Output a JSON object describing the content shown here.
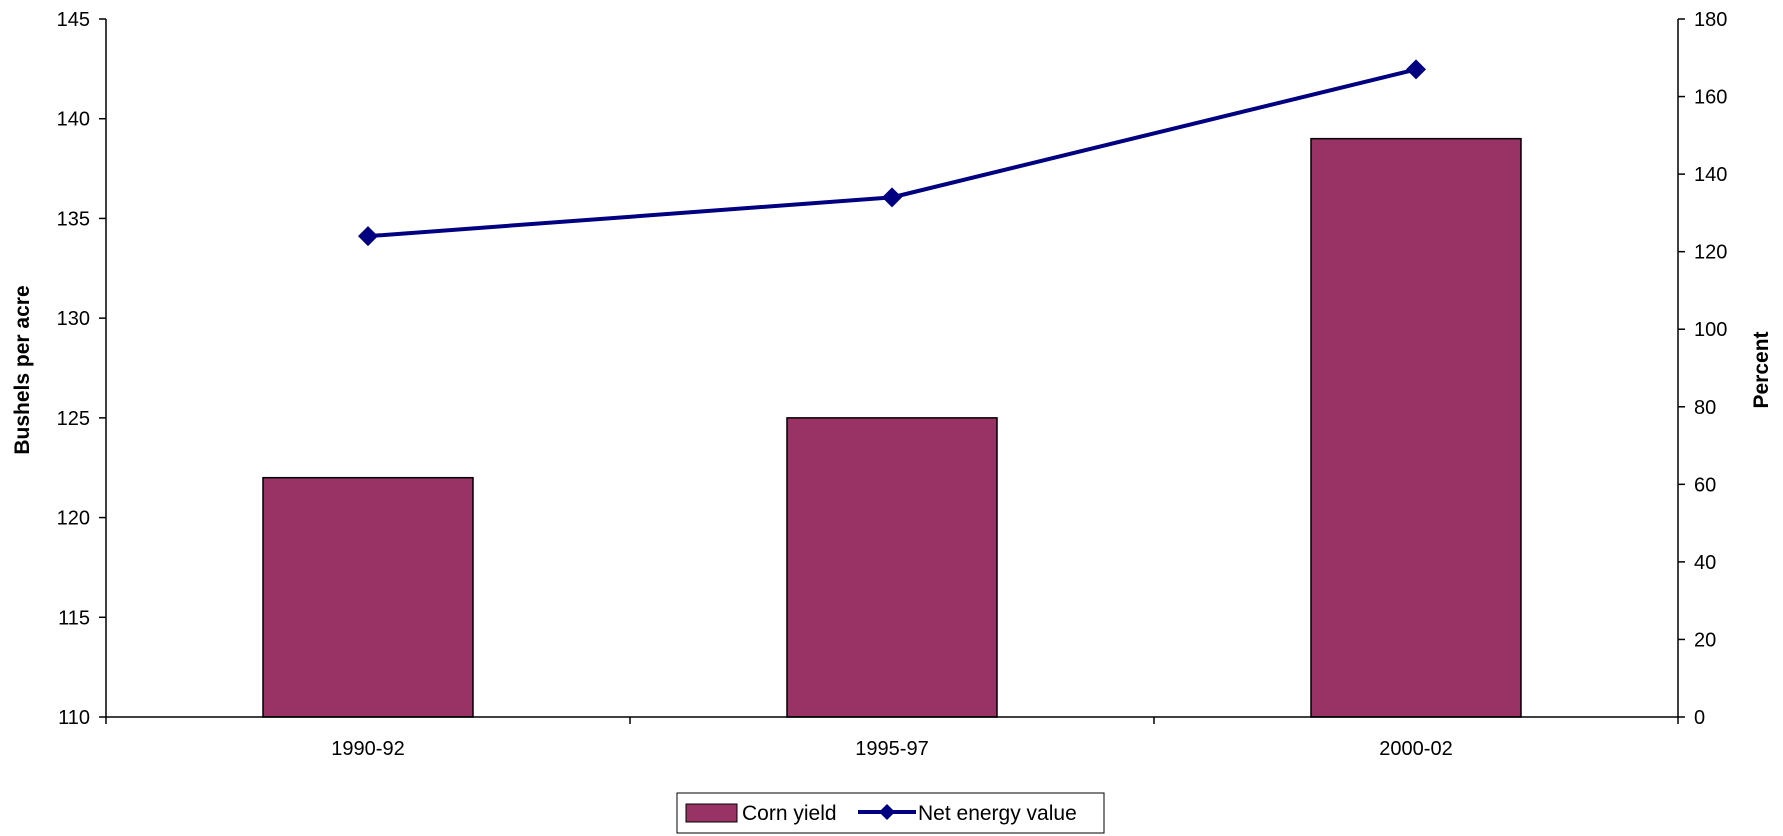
{
  "chart_data": {
    "type": "bar",
    "categories": [
      "1990-92",
      "1995-97",
      "2000-02"
    ],
    "series": [
      {
        "name": "Corn yield",
        "type": "bar",
        "axis": "left",
        "values": [
          122,
          125,
          139
        ],
        "color": "#993366"
      },
      {
        "name": "Net energy value",
        "type": "line",
        "axis": "right",
        "values": [
          124,
          134,
          167
        ],
        "color": "#000080",
        "marker": "diamond"
      }
    ],
    "title": "",
    "ylabel": "Bushels per acre",
    "y2label": "Percent",
    "ylim": [
      110,
      145
    ],
    "y2lim": [
      0,
      180
    ],
    "yticks": [
      "110",
      "115",
      "120",
      "125",
      "130",
      "135",
      "140",
      "145"
    ],
    "y2ticks": [
      "0",
      "20",
      "40",
      "60",
      "80",
      "100",
      "120",
      "140",
      "160",
      "180"
    ],
    "legend": "bottom-center",
    "grid": false
  }
}
